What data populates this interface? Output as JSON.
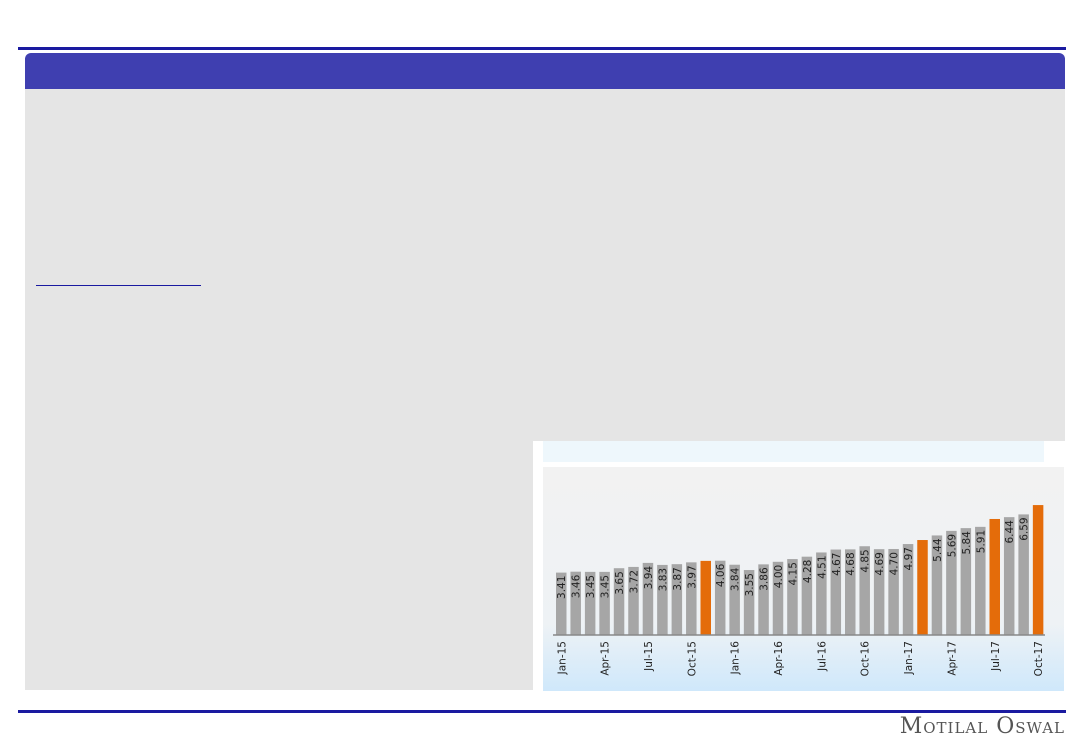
{
  "brand": {
    "logo_text": "Motilal Oswal"
  },
  "colors": {
    "header": "#3f3fb0",
    "bar": "#a6a6a6",
    "highlight": "#e46c0a"
  },
  "chart_data": {
    "type": "bar",
    "categories": [
      "Jan-15",
      "Feb-15",
      "Mar-15",
      "Apr-15",
      "May-15",
      "Jun-15",
      "Jul-15",
      "Aug-15",
      "Sep-15",
      "Oct-15",
      "Nov-15",
      "Dec-15",
      "Jan-16",
      "Feb-16",
      "Mar-16",
      "Apr-16",
      "May-16",
      "Jun-16",
      "Jul-16",
      "Aug-16",
      "Sep-16",
      "Oct-16",
      "Nov-16",
      "Dec-16",
      "Jan-17",
      "Feb-17",
      "Mar-17",
      "Apr-17",
      "May-17",
      "Jun-17",
      "Jul-17",
      "Aug-17",
      "Sep-17",
      "Oct-17"
    ],
    "tick_labels": [
      "Jan-15",
      "Apr-15",
      "Jul-15",
      "Oct-15",
      "Jan-16",
      "Apr-16",
      "Jul-16",
      "Oct-16",
      "Jan-17",
      "Apr-17",
      "Jul-17",
      "Oct-17"
    ],
    "values": [
      3.41,
      3.46,
      3.45,
      3.45,
      3.65,
      3.72,
      3.94,
      3.83,
      3.87,
      3.97,
      4.05,
      4.06,
      3.84,
      3.55,
      3.86,
      4.0,
      4.15,
      4.28,
      4.51,
      4.67,
      4.68,
      4.85,
      4.69,
      4.7,
      4.97,
      5.19,
      5.44,
      5.69,
      5.84,
      5.91,
      6.34,
      6.44,
      6.59,
      7.1
    ],
    "data_labels": [
      "3.41",
      "3.46",
      "3.45",
      "3.45",
      "3.65",
      "3.72",
      "3.94",
      "3.83",
      "3.87",
      "3.97",
      "",
      "4.06",
      "3.84",
      "3.55",
      "3.86",
      "4.00",
      "4.15",
      "4.28",
      "4.51",
      "4.67",
      "4.68",
      "4.85",
      "4.69",
      "4.70",
      "4.97",
      "",
      "5.44",
      "5.69",
      "5.84",
      "5.91",
      "",
      "6.44",
      "6.59",
      ""
    ],
    "highlighted": [
      "Nov-15",
      "Feb-17",
      "Jul-17",
      "Oct-17"
    ],
    "ylim": [
      0,
      7.5
    ],
    "grid": false
  }
}
